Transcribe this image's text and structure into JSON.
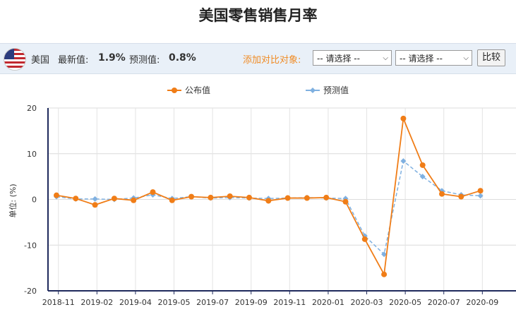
{
  "title": "美国零售销售月率",
  "info": {
    "country": "美国",
    "latest_label": "最新值:",
    "latest_value": "1.9%",
    "forecast_label": "预测值:",
    "forecast_value": "0.8%"
  },
  "compare": {
    "label": "添加对比对象:",
    "select1": "-- 请选择 --",
    "select2": "-- 请选择 --",
    "button": "比较"
  },
  "colors": {
    "published": "#f07d17",
    "forecast": "#7fb0e0",
    "axis": "#1f2a5c"
  },
  "chart_data": {
    "type": "line",
    "ylabel": "单位: (%)",
    "ylim": [
      -20,
      20
    ],
    "yticks": [
      -20,
      -10,
      0,
      10,
      20
    ],
    "xticks": [
      "2018-11",
      "2019-02",
      "2019-04",
      "2019-05",
      "2019-07",
      "2019-09",
      "2019-11",
      "2020-01",
      "2020-03",
      "2020-05",
      "2020-07",
      "2020-09"
    ],
    "grid": true,
    "legend_position": "top",
    "series": [
      {
        "name": "公布值",
        "values": [
          0.9,
          0.2,
          -1.2,
          0.2,
          -0.2,
          1.6,
          -0.2,
          0.6,
          0.4,
          0.7,
          0.4,
          -0.3,
          0.3,
          0.3,
          0.4,
          -0.5,
          -8.7,
          -16.4,
          17.7,
          7.5,
          1.2,
          0.6,
          1.9
        ]
      },
      {
        "name": "预测值",
        "values": [
          0.6,
          0.1,
          0.1,
          0.0,
          0.3,
          1.0,
          0.2,
          0.6,
          0.3,
          0.4,
          0.3,
          0.2,
          0.3,
          0.4,
          0.3,
          0.2,
          -8.0,
          -12.0,
          8.4,
          5.0,
          1.9,
          1.0,
          0.8
        ]
      }
    ]
  }
}
